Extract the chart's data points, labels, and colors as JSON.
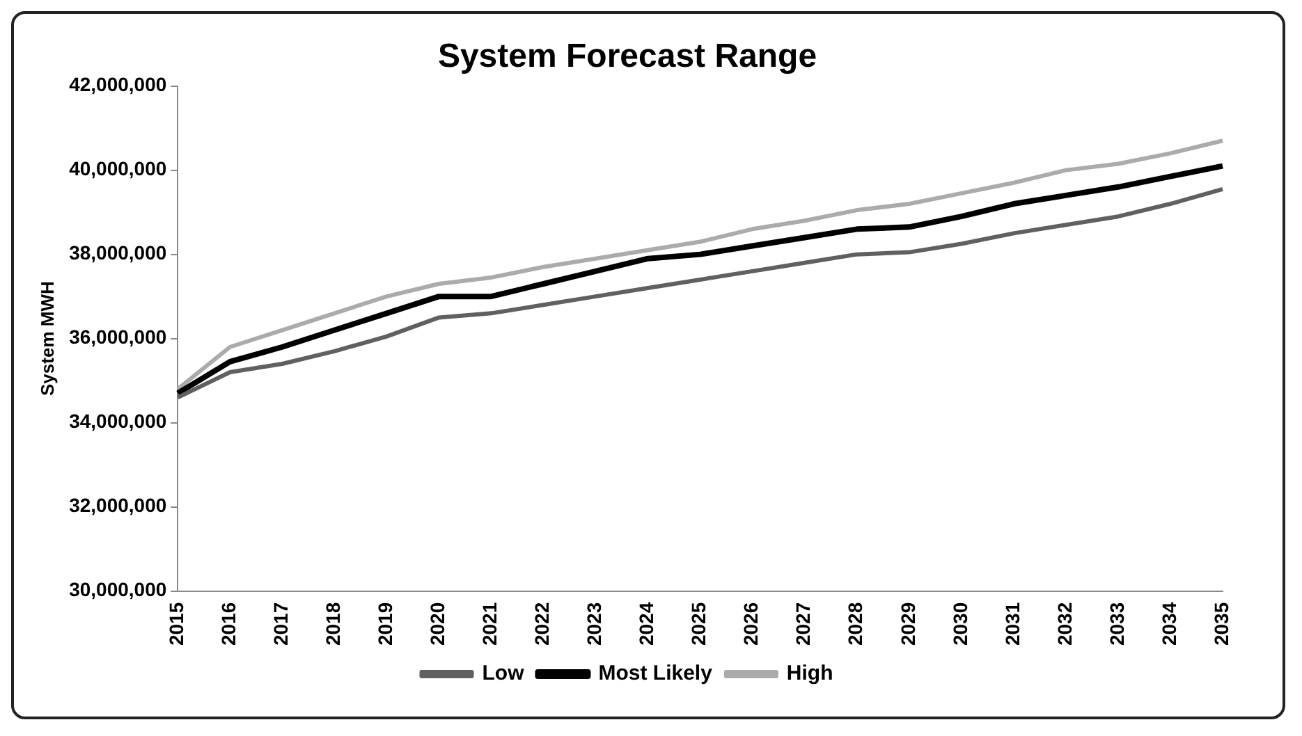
{
  "chart_data": {
    "type": "line",
    "title": "System Forecast Range",
    "ylabel": "System MWH",
    "categories": [
      "2015",
      "2016",
      "2017",
      "2018",
      "2019",
      "2020",
      "2021",
      "2022",
      "2023",
      "2024",
      "2025",
      "2026",
      "2027",
      "2028",
      "2029",
      "2030",
      "2031",
      "2032",
      "2033",
      "2034",
      "2035"
    ],
    "series": [
      {
        "name": "Low",
        "color": "#606060",
        "values": [
          34600000,
          35200000,
          35400000,
          35700000,
          36050000,
          36500000,
          36600000,
          36800000,
          37000000,
          37200000,
          37400000,
          37600000,
          37800000,
          38000000,
          38050000,
          38250000,
          38500000,
          38700000,
          38900000,
          39200000,
          39550000
        ]
      },
      {
        "name": "Most Likely",
        "color": "#000000",
        "values": [
          34700000,
          35450000,
          35800000,
          36200000,
          36600000,
          37000000,
          37000000,
          37300000,
          37600000,
          37900000,
          38000000,
          38200000,
          38400000,
          38600000,
          38650000,
          38900000,
          39200000,
          39400000,
          39600000,
          39850000,
          40100000
        ]
      },
      {
        "name": "High",
        "color": "#ababab",
        "values": [
          34800000,
          35800000,
          36200000,
          36600000,
          37000000,
          37300000,
          37450000,
          37700000,
          37900000,
          38100000,
          38300000,
          38600000,
          38800000,
          39050000,
          39200000,
          39450000,
          39700000,
          40000000,
          40150000,
          40400000,
          40700000
        ]
      }
    ],
    "ylim": [
      30000000,
      42000000
    ],
    "yticks": [
      {
        "value": 30000000,
        "label": "30,000,000"
      },
      {
        "value": 32000000,
        "label": "32,000,000"
      },
      {
        "value": 34000000,
        "label": "34,000,000"
      },
      {
        "value": 36000000,
        "label": "36,000,000"
      },
      {
        "value": 38000000,
        "label": "38,000,000"
      },
      {
        "value": 40000000,
        "label": "40,000,000"
      },
      {
        "value": 42000000,
        "label": "42,000,000"
      }
    ],
    "grid": false,
    "legend": "bottom",
    "marker": "none",
    "line_style": "solid"
  }
}
